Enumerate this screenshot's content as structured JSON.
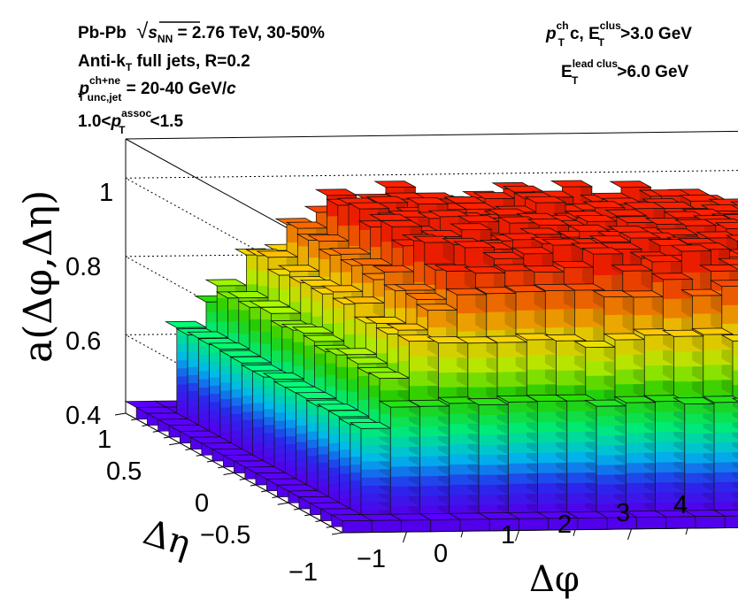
{
  "chart_data": {
    "type": "lego3d",
    "annotations_left": {
      "line1_a": "Pb-Pb",
      "line1_sqrt": "√",
      "line1_s": "s",
      "line1_s_sub": "NN",
      "line1_b": " = 2.76 TeV, 30-50%",
      "line2_a": "Anti-k",
      "line2_sub": "T",
      "line2_b": " full jets, R=0.2",
      "line3_p": "p",
      "line3_sup": "ch+ne",
      "line3_sub": "T unc,jet",
      "line3_b": " = 20-40 GeV/",
      "line3_c": "c",
      "line4_a": "1.0<",
      "line4_p": "p",
      "line4_sup": "assoc",
      "line4_sub": "T",
      "line4_b": "<1.5"
    },
    "annotations_right": {
      "line1_p": "p",
      "line1_sup": "ch",
      "line1_sub": "T",
      "line1_a": "c, E",
      "line1_sup2": "clus",
      "line1_sub2": "T",
      "line1_b": ">3.0 GeV",
      "line2_a": "E",
      "line2_sup": "lead clus",
      "line2_sub": "T",
      "line2_b": ">6.0 GeV"
    },
    "zlabel": "a(Δφ,Δη)",
    "xlabel": "Δφ",
    "ylabel": "Δη",
    "zticks": [
      "0.4",
      "0.6",
      "0.8",
      "1"
    ],
    "xticks": [
      "−1",
      "0",
      "1",
      "2",
      "3",
      "4"
    ],
    "yticks": [
      "−1",
      "−0.5",
      "0",
      "0.5",
      "1"
    ],
    "xlim": [
      -1.5708,
      4.7124
    ],
    "ylim": [
      -1.0,
      1.0
    ],
    "zlim": [
      0.4,
      1.1
    ],
    "nx": 24,
    "ny": 20,
    "plateau": 1.0,
    "edge_min": 0.43,
    "colormap": [
      "#5a00ff",
      "#2a2fff",
      "#00c8ff",
      "#00ff80",
      "#2adf00",
      "#c0ff00",
      "#ffd000",
      "#ff7a00",
      "#ff2000"
    ]
  }
}
